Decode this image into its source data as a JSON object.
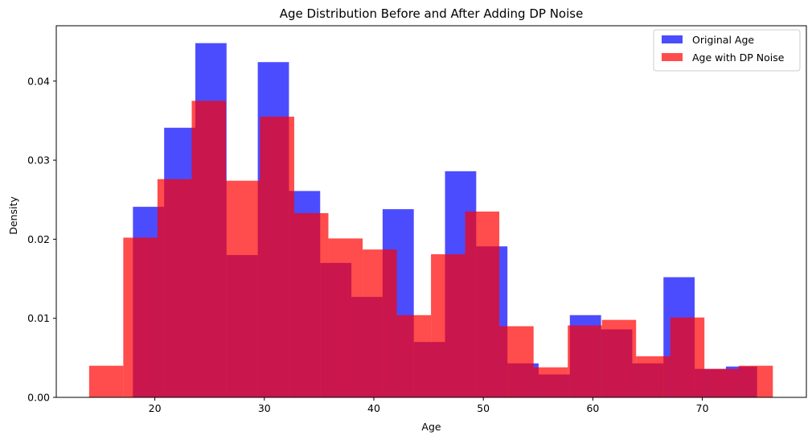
{
  "chart_data": {
    "type": "bar",
    "title": "Age Distribution Before and After Adding DP Noise",
    "xlabel": "Age",
    "ylabel": "Density",
    "xlim": [
      11,
      79.5
    ],
    "ylim": [
      0,
      0.047
    ],
    "xticks": [
      20,
      30,
      40,
      50,
      60,
      70
    ],
    "yticks": [
      0.0,
      0.01,
      0.02,
      0.03,
      0.04
    ],
    "ytick_labels": [
      "0.00",
      "0.01",
      "0.02",
      "0.03",
      "0.04"
    ],
    "legend": {
      "placement": "top-right"
    },
    "grid": false,
    "series": [
      {
        "name": "Original Age",
        "color": "#0000ff",
        "opacity": 0.7,
        "bin_edges": [
          18.0,
          20.85,
          23.7,
          26.55,
          29.4,
          32.25,
          35.1,
          37.95,
          40.8,
          43.65,
          46.5,
          49.35,
          52.2,
          55.05,
          57.9,
          60.75,
          63.6,
          66.45,
          69.3,
          72.15,
          75.0
        ],
        "values": [
          0.0241,
          0.0341,
          0.0448,
          0.018,
          0.0424,
          0.0261,
          0.017,
          0.0127,
          0.0238,
          0.007,
          0.0286,
          0.0191,
          0.0043,
          0.0029,
          0.0104,
          0.0086,
          0.0043,
          0.0152,
          0.0036,
          0.0039
        ]
      },
      {
        "name": "Age with DP Noise",
        "color": "#ff0000",
        "opacity": 0.7,
        "bin_edges": [
          14.0,
          17.12,
          20.24,
          23.37,
          26.49,
          29.61,
          32.73,
          35.85,
          38.98,
          42.1,
          45.22,
          48.34,
          51.46,
          54.59,
          57.71,
          60.83,
          63.95,
          67.07,
          70.19,
          73.32,
          76.44
        ],
        "values": [
          0.004,
          0.0202,
          0.0276,
          0.0375,
          0.0274,
          0.0355,
          0.0233,
          0.0201,
          0.0187,
          0.0104,
          0.0181,
          0.0235,
          0.009,
          0.0038,
          0.0091,
          0.0098,
          0.0052,
          0.0101,
          0.0036,
          0.004
        ]
      }
    ]
  }
}
